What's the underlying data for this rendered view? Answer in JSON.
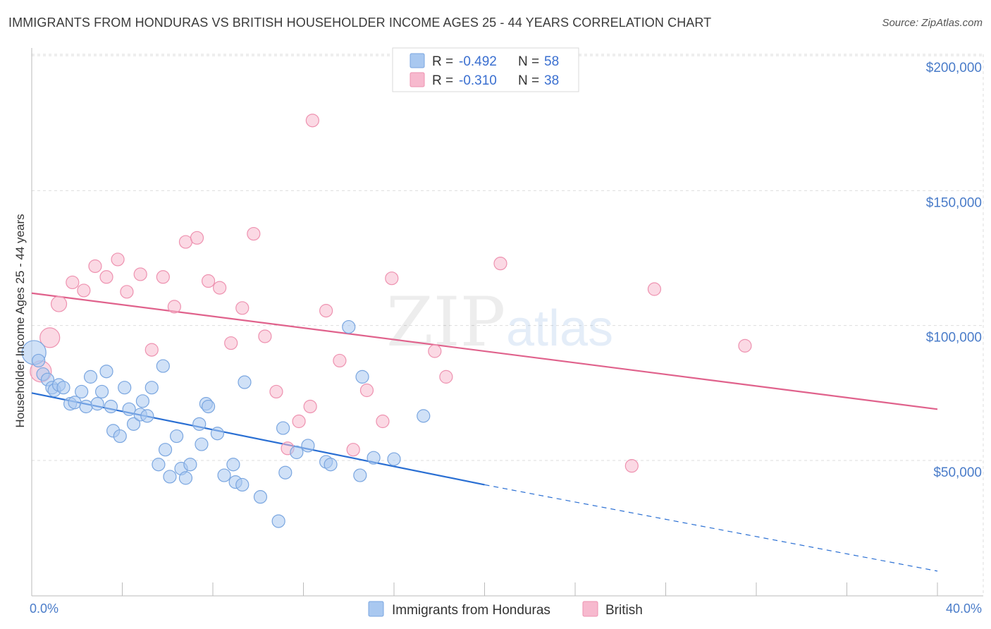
{
  "title": "IMMIGRANTS FROM HONDURAS VS BRITISH HOUSEHOLDER INCOME AGES 25 - 44 YEARS CORRELATION CHART",
  "source": "Source: ZipAtlas.com",
  "watermark": {
    "zip": "ZIP",
    "atlas": "atlas"
  },
  "colors": {
    "blue_fill": "#a9c8f0",
    "blue_stroke": "#7aa6e0",
    "blue_line": "#2a6fd3",
    "pink_fill": "#f7b9ce",
    "pink_stroke": "#ee92b0",
    "pink_line": "#e0628c",
    "grid": "#dddddd",
    "tick_text": "#4a7cc9"
  },
  "legend": {
    "r_label": "R =",
    "n_label": "N =",
    "rows": [
      {
        "series": "Immigrants from Honduras",
        "r": "-0.492",
        "n": "58"
      },
      {
        "series": "British",
        "r": "-0.310",
        "n": "38"
      }
    ],
    "placement": "top-center"
  },
  "chart_data": {
    "type": "scatter",
    "title": "IMMIGRANTS FROM HONDURAS VS BRITISH HOUSEHOLDER INCOME AGES 25 - 44 YEARS CORRELATION CHART",
    "xlabel": "",
    "ylabel": "Householder Income Ages 25 - 44 years",
    "xlim": [
      0,
      40
    ],
    "ylim": [
      5000,
      210000
    ],
    "x_tick_labels": [
      "0.0%",
      "40.0%"
    ],
    "y_ticks": [
      50000,
      100000,
      150000,
      200000
    ],
    "y_tick_labels": [
      "$50,000",
      "$100,000",
      "$150,000",
      "$200,000"
    ],
    "grid": true,
    "series": [
      {
        "name": "Immigrants from Honduras",
        "color": "#a9c8f0",
        "trend": {
          "x0": 0,
          "y0": 75000,
          "x1": 20,
          "y1": 41000,
          "dashed_to_x": 40,
          "dashed_to_y": 9000
        },
        "points": [
          [
            0.1,
            90000
          ],
          [
            0.3,
            87000
          ],
          [
            0.5,
            82000
          ],
          [
            0.7,
            80000
          ],
          [
            0.9,
            77000
          ],
          [
            1.0,
            76000
          ],
          [
            1.2,
            78000
          ],
          [
            1.4,
            77000
          ],
          [
            1.7,
            71000
          ],
          [
            1.9,
            71500
          ],
          [
            2.2,
            75500
          ],
          [
            2.4,
            70000
          ],
          [
            2.6,
            81000
          ],
          [
            2.9,
            71000
          ],
          [
            3.1,
            75500
          ],
          [
            3.3,
            83000
          ],
          [
            3.5,
            70000
          ],
          [
            3.6,
            61000
          ],
          [
            3.9,
            59000
          ],
          [
            4.1,
            77000
          ],
          [
            4.3,
            69000
          ],
          [
            4.5,
            63500
          ],
          [
            4.8,
            67000
          ],
          [
            4.9,
            72000
          ],
          [
            5.1,
            66500
          ],
          [
            5.3,
            77000
          ],
          [
            5.6,
            48500
          ],
          [
            5.8,
            85000
          ],
          [
            5.9,
            54000
          ],
          [
            6.1,
            44000
          ],
          [
            6.4,
            59000
          ],
          [
            6.6,
            47000
          ],
          [
            6.8,
            43500
          ],
          [
            7.0,
            48500
          ],
          [
            7.4,
            63500
          ],
          [
            7.5,
            56000
          ],
          [
            7.7,
            71000
          ],
          [
            7.8,
            70000
          ],
          [
            8.2,
            60000
          ],
          [
            8.5,
            44500
          ],
          [
            8.9,
            48500
          ],
          [
            9.0,
            42000
          ],
          [
            9.3,
            41000
          ],
          [
            9.4,
            79000
          ],
          [
            10.1,
            36500
          ],
          [
            10.9,
            27500
          ],
          [
            11.1,
            62000
          ],
          [
            11.2,
            45500
          ],
          [
            11.7,
            53000
          ],
          [
            12.2,
            55500
          ],
          [
            13.0,
            49500
          ],
          [
            13.2,
            48500
          ],
          [
            14.0,
            99500
          ],
          [
            14.5,
            44500
          ],
          [
            14.6,
            81000
          ],
          [
            15.1,
            51000
          ],
          [
            16.0,
            50500
          ],
          [
            17.3,
            66500
          ]
        ]
      },
      {
        "name": "British",
        "color": "#f7b9ce",
        "trend": {
          "x0": 0,
          "y0": 112000,
          "x1": 40,
          "y1": 69000
        },
        "points": [
          [
            0.4,
            83000
          ],
          [
            0.8,
            95500
          ],
          [
            1.2,
            108000
          ],
          [
            1.8,
            116000
          ],
          [
            2.3,
            113000
          ],
          [
            2.8,
            122000
          ],
          [
            3.3,
            118000
          ],
          [
            3.8,
            124500
          ],
          [
            4.2,
            112500
          ],
          [
            4.8,
            119000
          ],
          [
            5.3,
            91000
          ],
          [
            5.8,
            118000
          ],
          [
            6.3,
            107000
          ],
          [
            6.8,
            131000
          ],
          [
            7.3,
            132500
          ],
          [
            7.8,
            116500
          ],
          [
            8.3,
            114000
          ],
          [
            8.8,
            93500
          ],
          [
            9.3,
            106500
          ],
          [
            9.8,
            134000
          ],
          [
            10.3,
            96000
          ],
          [
            10.8,
            75500
          ],
          [
            11.3,
            54500
          ],
          [
            11.8,
            64500
          ],
          [
            12.3,
            70000
          ],
          [
            12.4,
            176000
          ],
          [
            13.0,
            105500
          ],
          [
            13.6,
            87000
          ],
          [
            14.2,
            54000
          ],
          [
            14.8,
            76000
          ],
          [
            15.5,
            64500
          ],
          [
            15.9,
            117500
          ],
          [
            17.8,
            90500
          ],
          [
            18.3,
            81000
          ],
          [
            20.7,
            123000
          ],
          [
            26.5,
            48000
          ],
          [
            27.5,
            113500
          ],
          [
            31.5,
            92500
          ]
        ]
      }
    ]
  }
}
